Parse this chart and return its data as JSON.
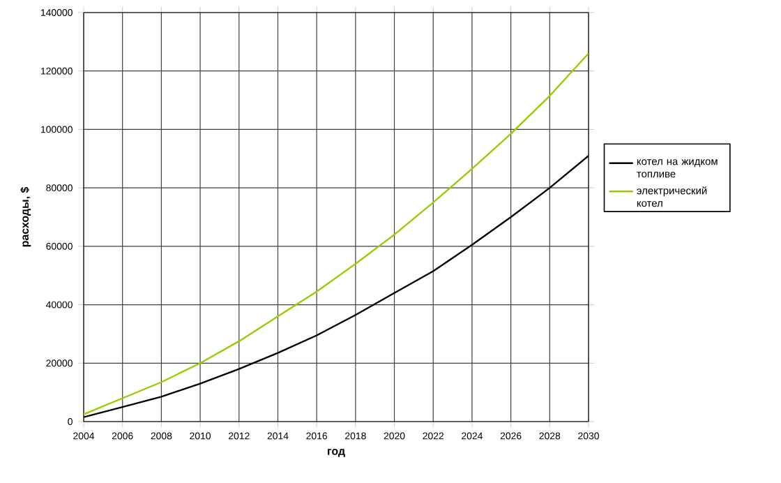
{
  "chart_data": {
    "type": "line",
    "xlabel": "год",
    "ylabel": "расходы, $",
    "x": [
      2004,
      2006,
      2008,
      2010,
      2012,
      2014,
      2016,
      2018,
      2020,
      2022,
      2024,
      2026,
      2028,
      2030
    ],
    "series": [
      {
        "name": "котел на жидком топливе",
        "color": "#000000",
        "values": [
          1500,
          5000,
          8500,
          13000,
          18000,
          23500,
          29500,
          36500,
          44000,
          51500,
          60500,
          70000,
          80000,
          91000
        ]
      },
      {
        "name": "электрический котел",
        "color": "#99cc00",
        "values": [
          2500,
          8000,
          13500,
          20000,
          27500,
          36000,
          44500,
          54000,
          64000,
          75000,
          86500,
          98500,
          111500,
          126000
        ]
      }
    ],
    "xlim": [
      2004,
      2030
    ],
    "xticks": [
      2004,
      2006,
      2008,
      2010,
      2012,
      2014,
      2016,
      2018,
      2020,
      2022,
      2024,
      2026,
      2028,
      2030
    ],
    "ylim": [
      0,
      140000
    ],
    "yticks": [
      0,
      20000,
      40000,
      60000,
      80000,
      100000,
      120000,
      140000
    ],
    "grid": true,
    "legend": "right",
    "marker": "none",
    "line_style": "solid"
  }
}
